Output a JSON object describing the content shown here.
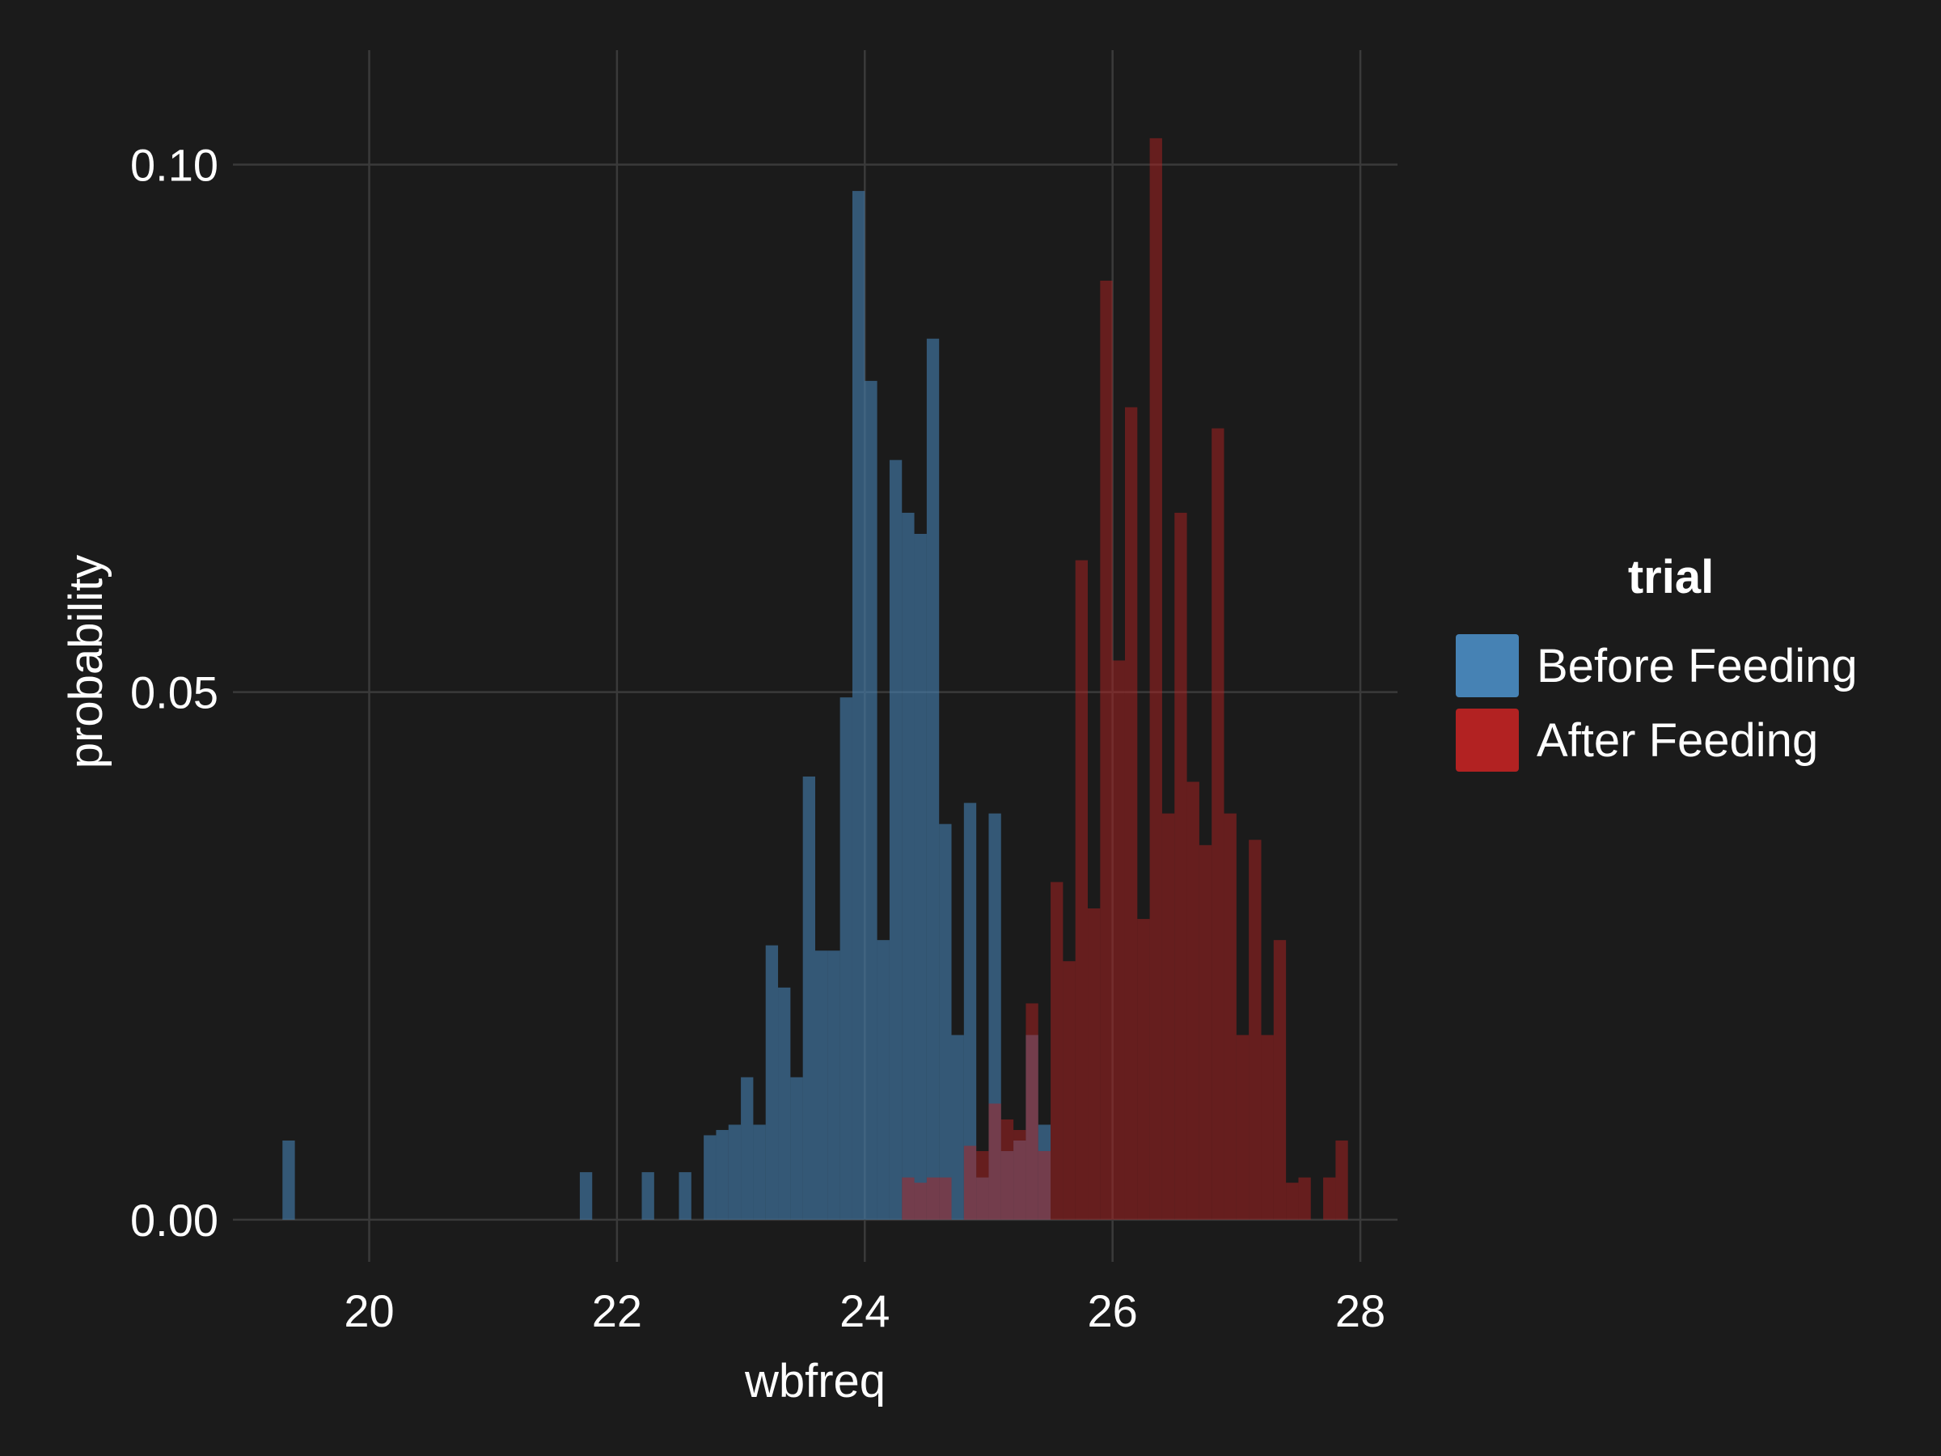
{
  "chart_data": {
    "type": "bar",
    "subtype": "histogram",
    "xlabel": "wbfreq",
    "ylabel": "probability",
    "xlim": [
      18.9,
      28.3
    ],
    "ylim": [
      -0.004,
      0.111
    ],
    "x_ticks": [
      20,
      22,
      24,
      26,
      28
    ],
    "x_tick_labels": [
      "20",
      "22",
      "24",
      "26",
      "28"
    ],
    "y_ticks": [
      0.0,
      0.05,
      0.1
    ],
    "y_tick_labels": [
      "0.00",
      "0.05",
      "0.10"
    ],
    "grid": true,
    "legend": {
      "title": "trial",
      "placement": "right",
      "entries": [
        {
          "label": "Before Feeding",
          "color": "#4682b4"
        },
        {
          "label": "After Feeding",
          "color": "#b22222"
        }
      ]
    },
    "bin_width": 0.1,
    "series": [
      {
        "name": "Before Feeding",
        "color": "#4682b4",
        "opacity": 0.6,
        "bins": [
          [
            19.3,
            0.0075
          ],
          [
            21.7,
            0.0045
          ],
          [
            22.2,
            0.0045
          ],
          [
            22.5,
            0.0045
          ],
          [
            22.7,
            0.008
          ],
          [
            22.8,
            0.0085
          ],
          [
            22.9,
            0.009
          ],
          [
            23.0,
            0.0135
          ],
          [
            23.1,
            0.009
          ],
          [
            23.2,
            0.026
          ],
          [
            23.3,
            0.022
          ],
          [
            23.4,
            0.0135
          ],
          [
            23.5,
            0.042
          ],
          [
            23.6,
            0.0255
          ],
          [
            23.7,
            0.0255
          ],
          [
            23.8,
            0.0495
          ],
          [
            23.9,
            0.0975
          ],
          [
            24.0,
            0.0795
          ],
          [
            24.1,
            0.0265
          ],
          [
            24.2,
            0.072
          ],
          [
            24.3,
            0.067
          ],
          [
            24.4,
            0.065
          ],
          [
            24.5,
            0.0835
          ],
          [
            24.6,
            0.0375
          ],
          [
            24.7,
            0.0175
          ],
          [
            24.8,
            0.0395
          ],
          [
            24.9,
            0.004
          ],
          [
            25.0,
            0.0385
          ],
          [
            25.1,
            0.0065
          ],
          [
            25.2,
            0.0075
          ],
          [
            25.3,
            0.0175
          ],
          [
            25.4,
            0.009
          ]
        ]
      },
      {
        "name": "After Feeding",
        "color": "#b22222",
        "opacity": 0.5,
        "bins": [
          [
            24.3,
            0.004
          ],
          [
            24.4,
            0.0035
          ],
          [
            24.5,
            0.004
          ],
          [
            24.6,
            0.004
          ],
          [
            24.8,
            0.007
          ],
          [
            24.9,
            0.0065
          ],
          [
            25.0,
            0.011
          ],
          [
            25.1,
            0.0095
          ],
          [
            25.2,
            0.0085
          ],
          [
            25.3,
            0.0205
          ],
          [
            25.4,
            0.0065
          ],
          [
            25.5,
            0.032
          ],
          [
            25.6,
            0.0245
          ],
          [
            25.7,
            0.0625
          ],
          [
            25.8,
            0.0295
          ],
          [
            25.9,
            0.089
          ],
          [
            26.0,
            0.053
          ],
          [
            26.1,
            0.077
          ],
          [
            26.2,
            0.0285
          ],
          [
            26.3,
            0.1025
          ],
          [
            26.4,
            0.0385
          ],
          [
            26.5,
            0.067
          ],
          [
            26.6,
            0.0415
          ],
          [
            26.7,
            0.0355
          ],
          [
            26.8,
            0.075
          ],
          [
            26.9,
            0.0385
          ],
          [
            27.0,
            0.0175
          ],
          [
            27.1,
            0.036
          ],
          [
            27.2,
            0.0175
          ],
          [
            27.3,
            0.0265
          ],
          [
            27.4,
            0.0035
          ],
          [
            27.5,
            0.004
          ],
          [
            27.7,
            0.004
          ],
          [
            27.8,
            0.0075
          ]
        ]
      }
    ]
  }
}
